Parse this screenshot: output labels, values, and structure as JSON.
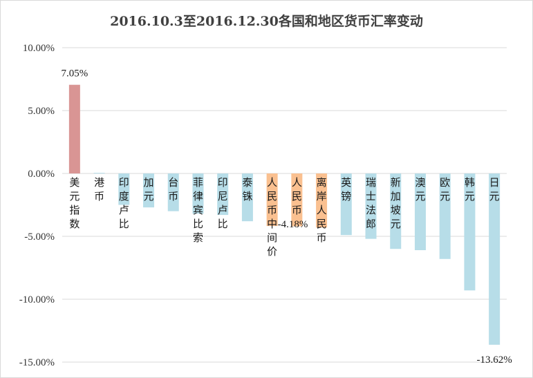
{
  "chart_data": {
    "type": "bar",
    "title": "2016.10.3至2016.12.30各国和地区货币汇率变动",
    "xlabel": "",
    "ylabel": "",
    "ylim": [
      -15,
      10
    ],
    "yticks": [
      10,
      5,
      0,
      -5,
      -10,
      -15
    ],
    "ytick_labels": [
      "10.00%",
      "5.00%",
      "0.00%",
      "-5.00%",
      "-10.00%",
      "-15.00%"
    ],
    "grid": true,
    "legend": "none",
    "categories": [
      "美元指数",
      "港币",
      "印度卢比",
      "加元",
      "台币",
      "菲律宾比索",
      "印尼卢比",
      "泰铢",
      "人民币中间价",
      "人民币",
      "离岸人民币",
      "英镑",
      "瑞士法郎",
      "新加坡元",
      "澳元",
      "欧元",
      "韩元",
      "日元"
    ],
    "values": [
      7.05,
      0.05,
      -2.5,
      -2.7,
      -3.0,
      -3.2,
      -3.3,
      -3.8,
      -4.18,
      -4.2,
      -4.3,
      -4.9,
      -5.2,
      -6.0,
      -6.1,
      -6.8,
      -9.3,
      -13.62
    ],
    "bar_colors": [
      "#d99594",
      "#b7dde8",
      "#b7dde8",
      "#b7dde8",
      "#b7dde8",
      "#b7dde8",
      "#b7dde8",
      "#b7dde8",
      "#fac090",
      "#fac090",
      "#fac090",
      "#b7dde8",
      "#b7dde8",
      "#b7dde8",
      "#b7dde8",
      "#b7dde8",
      "#b7dde8",
      "#b7dde8"
    ],
    "data_labels": [
      {
        "index": 0,
        "text": "7.05%",
        "placement": "above"
      },
      {
        "index": 8,
        "text": "-4.18%",
        "placement": "inline"
      },
      {
        "index": 17,
        "text": "-13.62%",
        "placement": "below"
      }
    ]
  }
}
